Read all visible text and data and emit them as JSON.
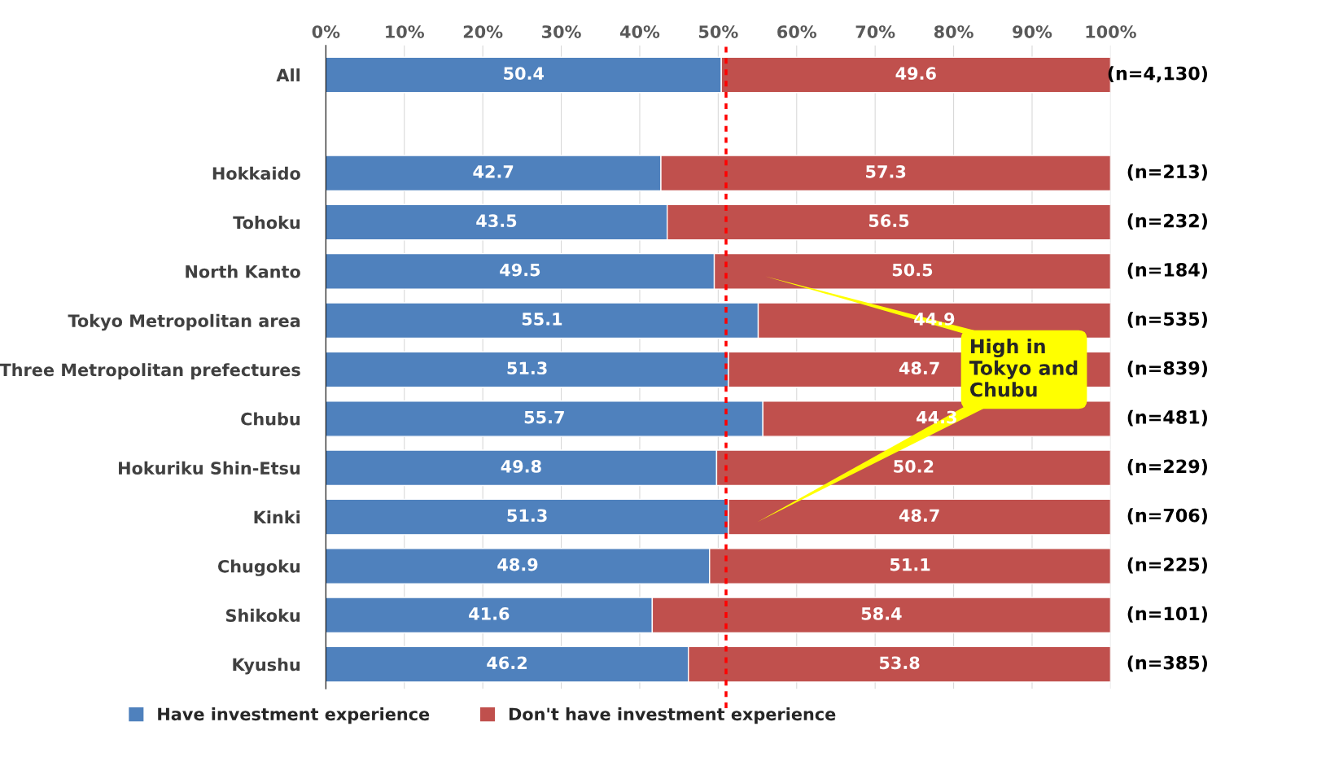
{
  "chart_data": {
    "type": "bar",
    "orientation": "horizontal",
    "stacked": true,
    "categories": [
      "All",
      null,
      "Hokkaido",
      "Tohoku",
      "North Kanto",
      "Tokyo Metropolitan area",
      "Three Metropolitan prefectures",
      "Chubu",
      "Hokuriku Shin-Etsu",
      "Kinki",
      "Chugoku",
      "Shikoku",
      "Kyushu"
    ],
    "series": [
      {
        "name": "Have investment experience",
        "color": "#4f81bd",
        "values": [
          50.4,
          null,
          42.7,
          43.5,
          49.5,
          55.1,
          51.3,
          55.7,
          49.8,
          51.3,
          48.9,
          41.6,
          46.2
        ]
      },
      {
        "name": "Don't have investment experience",
        "color": "#c0504d",
        "values": [
          49.6,
          null,
          57.3,
          56.5,
          50.5,
          44.9,
          48.7,
          44.3,
          50.2,
          48.7,
          51.1,
          58.4,
          53.8
        ]
      }
    ],
    "xlim": [
      0,
      100
    ],
    "xticks": [
      {
        "value": 0,
        "label": "0%"
      },
      {
        "value": 10,
        "label": "10%"
      },
      {
        "value": 20,
        "label": "20%"
      },
      {
        "value": 30,
        "label": "30%"
      },
      {
        "value": 40,
        "label": "40%"
      },
      {
        "value": 50,
        "label": "50%"
      },
      {
        "value": 60,
        "label": "60%"
      },
      {
        "value": 70,
        "label": "70%"
      },
      {
        "value": 80,
        "label": "80%"
      },
      {
        "value": 90,
        "label": "90%"
      },
      {
        "value": 100,
        "label": "100%"
      }
    ],
    "grid": "x",
    "legend": "bottom",
    "data_labels": true,
    "ref_lines": [
      {
        "axis": "x",
        "value": 51,
        "label": null,
        "color": "#ff0000",
        "line_style": "dotted"
      }
    ],
    "annotations": [
      "(n=4,130)",
      "(n=213)",
      "(n=232)",
      "(n=184)",
      "(n=535)",
      "(n=839)",
      "(n=481)",
      "(n=229)",
      "(n=706)",
      "(n=225)",
      "(n=101)",
      "(n=385)",
      "High in\nTokyo and\nChubu"
    ]
  }
}
